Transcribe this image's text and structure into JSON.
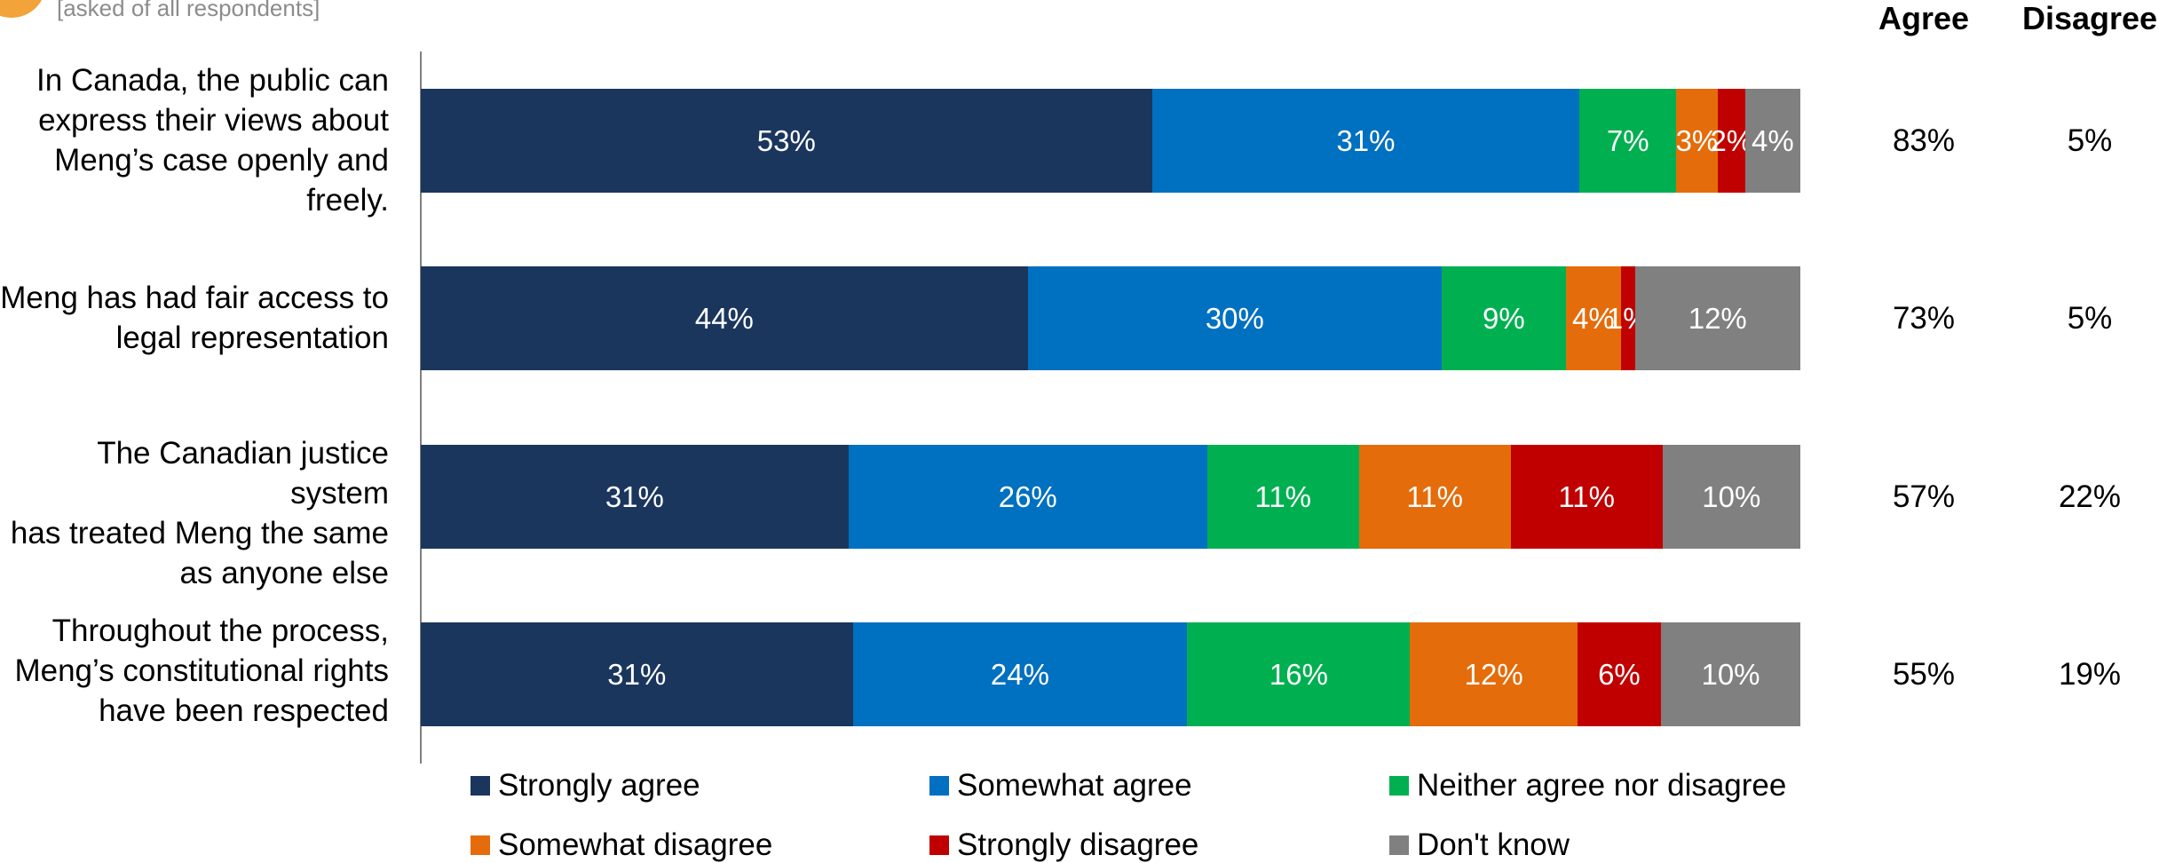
{
  "header": {
    "subtitle": "[asked of all respondents]",
    "agree_heading": "Agree",
    "disagree_heading": "Disagree"
  },
  "colors": {
    "strongly_agree": "#1b365d",
    "somewhat_agree": "#0070c0",
    "neither": "#00b050",
    "somewhat_disagree": "#e46c0a",
    "strongly_disagree": "#c00000",
    "dont_know": "#808080",
    "badge": "#f2a33a"
  },
  "chart_data": {
    "type": "bar",
    "orientation": "horizontal",
    "stacked": true,
    "categories": [
      "In Canada, the public can express their views about Meng’s case openly and freely.",
      "Meng has had fair access to legal representation",
      "The Canadian justice system has treated Meng the same as anyone else",
      "Throughout the process, Meng’s constitutional rights have been respected"
    ],
    "category_lines": [
      "In Canada, the public can\nexpress their views about\nMeng’s case openly and\nfreely.",
      "Meng has had fair access to\nlegal representation",
      "The Canadian justice system\nhas treated Meng the same\nas anyone else",
      "Throughout the process,\nMeng’s constitutional rights\nhave been respected"
    ],
    "series": [
      {
        "name": "Strongly agree",
        "values": [
          53,
          44,
          31,
          31
        ],
        "labels": [
          "53%",
          "44%",
          "31%",
          "31%"
        ]
      },
      {
        "name": "Somewhat agree",
        "values": [
          31,
          30,
          26,
          24
        ],
        "labels": [
          "31%",
          "30%",
          "26%",
          "24%"
        ]
      },
      {
        "name": "Neither agree nor disagree",
        "values": [
          7,
          9,
          11,
          16
        ],
        "labels": [
          "7%",
          "9%",
          "11%",
          "16%"
        ]
      },
      {
        "name": "Somewhat disagree",
        "values": [
          3,
          4,
          11,
          12
        ],
        "labels": [
          "3%",
          "4%",
          "11%",
          "12%"
        ]
      },
      {
        "name": "Strongly disagree",
        "values": [
          2,
          1,
          11,
          6
        ],
        "labels": [
          "2%",
          "1%",
          "11%",
          "6%"
        ]
      },
      {
        "name": "Don't know",
        "values": [
          4,
          12,
          10,
          10
        ],
        "labels": [
          "4%",
          "12%",
          "10%",
          "10%"
        ]
      }
    ],
    "net_agree": [
      "83%",
      "73%",
      "57%",
      "55%"
    ],
    "net_disagree": [
      "5%",
      "5%",
      "22%",
      "19%"
    ],
    "legend_position": "bottom",
    "grid": false
  }
}
